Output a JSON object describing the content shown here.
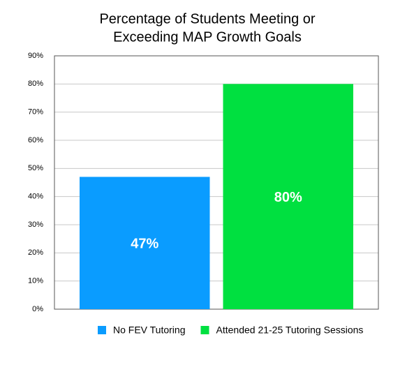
{
  "chart_data": {
    "type": "bar",
    "title": [
      "Percentage of Students Meeting or",
      "Exceeding MAP Growth Goals"
    ],
    "series": [
      {
        "name": "No FEV Tutoring",
        "color": "#0a9cff",
        "values": [
          47
        ],
        "value_labels": [
          "47%"
        ]
      },
      {
        "name": "Attended 21-25 Tutoring Sessions",
        "color": "#00e040",
        "values": [
          80
        ],
        "value_labels": [
          "80%"
        ]
      }
    ],
    "ylim": [
      0,
      90
    ],
    "yticks": [
      {
        "value": 0,
        "label": "0%"
      },
      {
        "value": 10,
        "label": "10%"
      },
      {
        "value": 20,
        "label": "20%"
      },
      {
        "value": 30,
        "label": "30%"
      },
      {
        "value": 40,
        "label": "40%"
      },
      {
        "value": 50,
        "label": "50%"
      },
      {
        "value": 60,
        "label": "60%"
      },
      {
        "value": 70,
        "label": "70%"
      },
      {
        "value": 80,
        "label": "80%"
      },
      {
        "value": 90,
        "label": "90%"
      }
    ],
    "grid": true,
    "legend": "bottom"
  }
}
